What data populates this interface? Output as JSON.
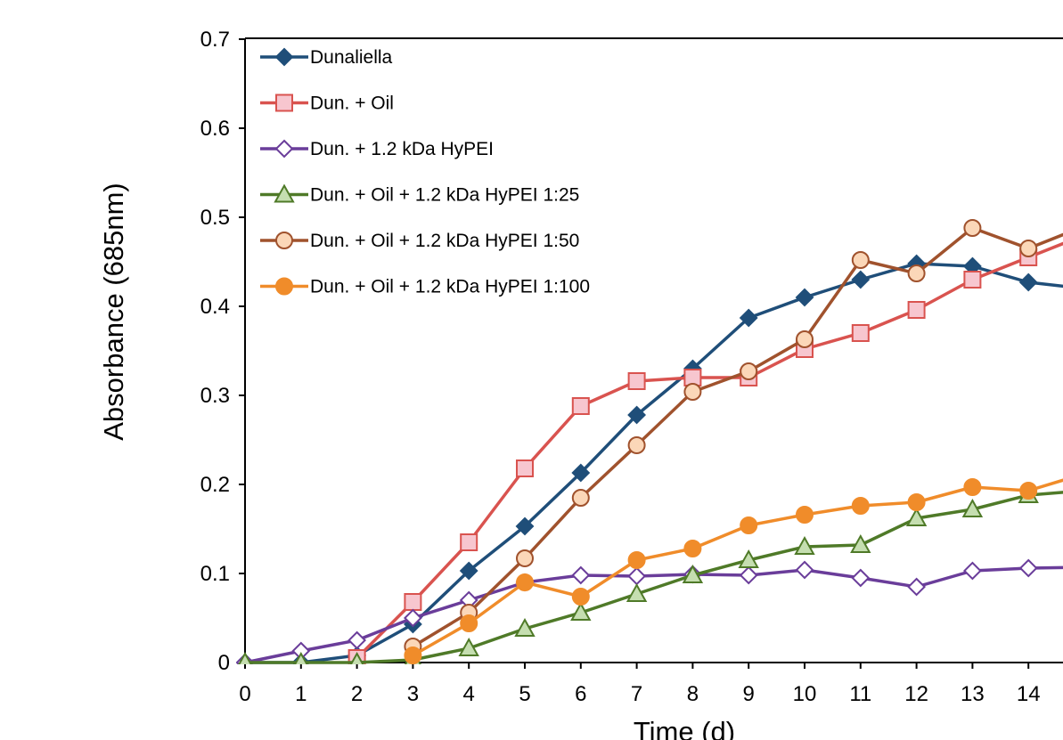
{
  "chart_data": {
    "type": "line",
    "title": "",
    "xlabel": "Time (d)",
    "ylabel": "Absorbance (685nm)",
    "xlim": [
      0,
      15
    ],
    "ylim": [
      0,
      0.7
    ],
    "x_ticks": [
      "0",
      "1",
      "2",
      "3",
      "4",
      "5",
      "6",
      "7",
      "8",
      "9",
      "10",
      "11",
      "12",
      "13",
      "14"
    ],
    "y_ticks": [
      "0",
      "0.1",
      "0.2",
      "0.3",
      "0.4",
      "0.5",
      "0.6",
      "0.7"
    ],
    "legend_position": "top-left",
    "grid": false,
    "series": [
      {
        "name": "Dunaliella",
        "color": "#1f4e79",
        "marker": "diamond-filled",
        "x": [
          0,
          1,
          2,
          3,
          4,
          5,
          6,
          7,
          8,
          9,
          10,
          11,
          12,
          13,
          14,
          15
        ],
        "values": [
          0.0,
          0.0,
          0.008,
          0.043,
          0.103,
          0.153,
          0.213,
          0.278,
          0.33,
          0.387,
          0.41,
          0.43,
          0.448,
          0.445,
          0.427,
          0.42
        ]
      },
      {
        "name": "Dun. + Oil",
        "color": "#d9534f",
        "marker": "square-open",
        "x": [
          2,
          3,
          4,
          5,
          6,
          7,
          8,
          9,
          10,
          11,
          12,
          13,
          14,
          15
        ],
        "values": [
          0.005,
          0.068,
          0.135,
          0.218,
          0.288,
          0.316,
          0.32,
          0.32,
          0.352,
          0.37,
          0.396,
          0.43,
          0.455,
          0.48
        ]
      },
      {
        "name": "Dun. + 1.2 kDa HyPEI",
        "color": "#6a3d9a",
        "marker": "diamond-open",
        "x": [
          0,
          1,
          2,
          3,
          4,
          5,
          6,
          7,
          8,
          9,
          10,
          11,
          12,
          13,
          14,
          15
        ],
        "values": [
          0.0,
          0.013,
          0.025,
          0.05,
          0.07,
          0.09,
          0.098,
          0.097,
          0.099,
          0.098,
          0.104,
          0.095,
          0.085,
          0.103,
          0.106,
          0.107
        ]
      },
      {
        "name": "Dun. + Oil + 1.2 kDa HyPEI 1:25",
        "color": "#4f7a28",
        "marker": "triangle-open",
        "x": [
          0,
          1,
          2,
          3,
          4,
          5,
          6,
          7,
          8,
          9,
          10,
          11,
          12,
          13,
          14,
          15
        ],
        "values": [
          0.0,
          0.0,
          0.0,
          0.003,
          0.016,
          0.038,
          0.056,
          0.077,
          0.098,
          0.115,
          0.13,
          0.132,
          0.162,
          0.172,
          0.188,
          0.193
        ]
      },
      {
        "name": "Dun. + Oil + 1.2 kDa HyPEI 1:50",
        "color": "#a0522d",
        "marker": "circle-open",
        "x": [
          3,
          4,
          5,
          6,
          7,
          8,
          9,
          10,
          11,
          12,
          13,
          14,
          15
        ],
        "values": [
          0.018,
          0.056,
          0.117,
          0.185,
          0.244,
          0.304,
          0.327,
          0.363,
          0.452,
          0.437,
          0.488,
          0.465,
          0.49
        ]
      },
      {
        "name": "Dun. + Oil + 1.2 kDa HyPEI 1:100",
        "color": "#f08c2a",
        "marker": "circle-filled",
        "x": [
          3,
          4,
          5,
          6,
          7,
          8,
          9,
          10,
          11,
          12,
          13,
          14,
          15
        ],
        "values": [
          0.008,
          0.044,
          0.09,
          0.074,
          0.115,
          0.128,
          0.154,
          0.166,
          0.176,
          0.18,
          0.197,
          0.193,
          0.212
        ]
      }
    ]
  }
}
